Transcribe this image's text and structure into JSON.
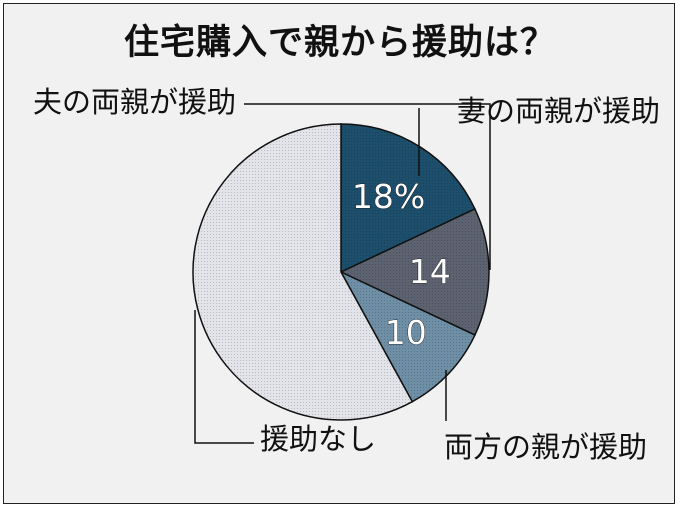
{
  "title": "住宅購入で親から援助は？",
  "chart_data": {
    "type": "pie",
    "title": "住宅購入で親から援助は？",
    "slices": [
      {
        "label": "妻の両親が援助",
        "value": 18,
        "value_label": "18%",
        "color": "#1d4e6b"
      },
      {
        "label": "夫の両親が援助",
        "value": 14,
        "value_label": "14",
        "color": "#5c6270"
      },
      {
        "label": "両方の親が援助",
        "value": 10,
        "value_label": "10",
        "color": "#6f8fa6"
      },
      {
        "label": "援助なし",
        "value": 58,
        "value_label": "",
        "color": "#e3e4ea"
      }
    ]
  }
}
